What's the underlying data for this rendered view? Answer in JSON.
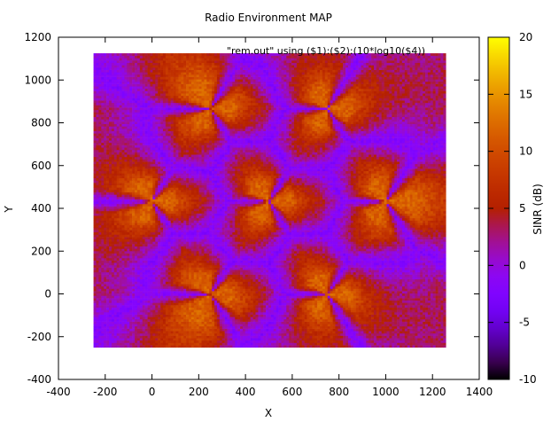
{
  "chart_data": {
    "type": "heatmap",
    "title": "Radio Environment MAP",
    "legend_entry": "\"rem.out\" using ($1):($2):(10*log10($4))",
    "xlabel": "X",
    "ylabel": "Y",
    "xlim": [
      -400,
      1400
    ],
    "ylim": [
      -400,
      1200
    ],
    "x_ticks": [
      "-400",
      "-200",
      "0",
      "200",
      "400",
      "600",
      "800",
      "1000",
      "1200",
      "1400"
    ],
    "y_ticks": [
      "-400",
      "-200",
      "0",
      "200",
      "400",
      "600",
      "800",
      "1000",
      "1200"
    ],
    "colorbar": {
      "label": "SINR (dB)",
      "range": [
        -10,
        20
      ],
      "ticks": [
        "-10",
        "-5",
        "0",
        "5",
        "10",
        "15",
        "20"
      ]
    },
    "data_extent": {
      "x": [
        -250,
        1250
      ],
      "y": [
        -250,
        1120
      ]
    },
    "sites": [
      {
        "x": 0,
        "y": 433
      },
      {
        "x": 250,
        "y": 866
      },
      {
        "x": 750,
        "y": 866
      },
      {
        "x": 500,
        "y": 433
      },
      {
        "x": 1000,
        "y": 433
      },
      {
        "x": 250,
        "y": 0
      },
      {
        "x": 750,
        "y": 0
      }
    ],
    "sector_azimuths_deg": [
      0,
      120,
      240
    ],
    "grid": false,
    "legend_position": "top-right"
  }
}
